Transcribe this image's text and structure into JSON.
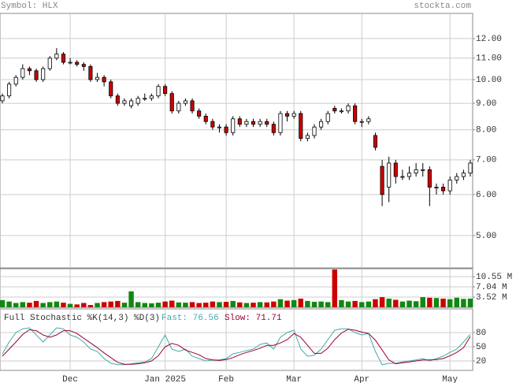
{
  "header": {
    "symbol": "Symbol: HLX",
    "site": "stockta.com"
  },
  "chart_data": [
    {
      "type": "candlestick",
      "log": true,
      "grid": true,
      "up_color": "#ffffff",
      "down_color": "#cc0000",
      "open": [
        9.1,
        9.3,
        9.8,
        10.1,
        10.5,
        10.4,
        10.0,
        10.5,
        11.0,
        11.2,
        10.8,
        10.8,
        10.7,
        10.6,
        10.0,
        10.1,
        9.9,
        9.3,
        9.0,
        8.9,
        9.0,
        9.2,
        9.2,
        9.3,
        9.7,
        9.4,
        8.7,
        9.0,
        9.1,
        8.7,
        8.5,
        8.3,
        8.1,
        8.1,
        7.9,
        8.4,
        8.2,
        8.3,
        8.2,
        8.3,
        8.2,
        7.9,
        8.6,
        8.5,
        8.6,
        7.7,
        7.8,
        8.1,
        8.3,
        8.8,
        8.7,
        8.7,
        8.9,
        8.3,
        8.3,
        7.8,
        6.8,
        6.2,
        6.9,
        6.5,
        6.5,
        6.6,
        6.7,
        6.7,
        6.2,
        6.2,
        6.1,
        6.4,
        6.5,
        6.6
      ],
      "high": [
        9.4,
        9.9,
        10.2,
        10.7,
        10.6,
        10.5,
        10.6,
        11.1,
        11.5,
        11.3,
        11.0,
        10.9,
        10.8,
        10.7,
        10.3,
        10.2,
        10.0,
        9.4,
        9.2,
        9.2,
        9.3,
        9.4,
        9.4,
        9.8,
        9.8,
        9.5,
        9.1,
        9.2,
        9.2,
        8.8,
        8.6,
        8.4,
        8.2,
        8.2,
        8.5,
        8.5,
        8.4,
        8.4,
        8.4,
        8.4,
        8.3,
        8.7,
        8.7,
        8.7,
        8.7,
        7.9,
        8.2,
        8.4,
        8.7,
        8.9,
        8.8,
        9.0,
        9.0,
        8.4,
        8.5,
        7.9,
        7.0,
        7.1,
        7.0,
        6.7,
        6.8,
        6.9,
        6.9,
        6.8,
        6.3,
        6.3,
        6.5,
        6.6,
        6.7,
        7.0
      ],
      "low": [
        9.0,
        9.2,
        9.7,
        10.0,
        10.2,
        9.9,
        9.9,
        10.4,
        10.9,
        10.7,
        10.7,
        10.6,
        10.4,
        9.9,
        9.9,
        9.7,
        9.2,
        8.9,
        8.9,
        8.8,
        8.9,
        9.1,
        9.1,
        9.2,
        9.3,
        8.6,
        8.6,
        8.9,
        8.6,
        8.4,
        8.2,
        8.0,
        7.9,
        7.8,
        7.8,
        8.1,
        8.1,
        8.1,
        8.1,
        8.1,
        7.8,
        7.8,
        8.3,
        8.4,
        7.6,
        7.6,
        7.7,
        8.0,
        8.2,
        8.6,
        8.6,
        8.6,
        8.2,
        8.1,
        8.2,
        7.3,
        5.7,
        5.8,
        6.3,
        6.4,
        6.4,
        6.5,
        6.5,
        5.7,
        6.0,
        6.0,
        6.0,
        6.3,
        6.4,
        6.5
      ],
      "close": [
        9.3,
        9.8,
        10.1,
        10.5,
        10.4,
        10.0,
        10.5,
        11.0,
        11.2,
        10.8,
        10.8,
        10.7,
        10.6,
        10.0,
        10.1,
        9.9,
        9.3,
        9.0,
        9.1,
        9.1,
        9.2,
        9.2,
        9.3,
        9.7,
        9.4,
        8.7,
        9.0,
        9.1,
        8.7,
        8.5,
        8.3,
        8.1,
        8.1,
        7.9,
        8.4,
        8.2,
        8.3,
        8.2,
        8.3,
        8.2,
        7.9,
        8.6,
        8.5,
        8.6,
        7.7,
        7.8,
        8.1,
        8.3,
        8.6,
        8.7,
        8.7,
        8.9,
        8.3,
        8.3,
        8.4,
        7.4,
        6.0,
        6.9,
        6.5,
        6.5,
        6.6,
        6.7,
        6.7,
        6.2,
        6.2,
        6.1,
        6.4,
        6.5,
        6.6,
        6.9
      ],
      "ylim": [
        4.33,
        13.42
      ],
      "yticks": [
        {
          "value": 5,
          "label": "5.00"
        },
        {
          "value": 6,
          "label": "6.00"
        },
        {
          "value": 7,
          "label": "7.00"
        },
        {
          "value": 8,
          "label": "8.00"
        },
        {
          "value": 9,
          "label": "9.00"
        },
        {
          "value": 10,
          "label": "10.00"
        },
        {
          "value": 11,
          "label": "11.00"
        },
        {
          "value": 12,
          "label": "12.00"
        }
      ]
    },
    {
      "type": "bar",
      "grid": true,
      "up_color": "#118811",
      "down_color": "#cc0000",
      "values": [
        2.5,
        2.0,
        1.5,
        1.8,
        1.6,
        2.2,
        1.5,
        1.8,
        2.0,
        1.6,
        1.2,
        1.0,
        1.5,
        0.8,
        1.5,
        1.8,
        2.0,
        2.2,
        1.6,
        5.5,
        1.8,
        1.5,
        1.4,
        1.6,
        2.0,
        2.3,
        1.7,
        1.6,
        1.8,
        1.5,
        1.6,
        2.0,
        1.8,
        1.9,
        2.2,
        1.7,
        1.5,
        1.6,
        1.8,
        1.7,
        2.0,
        2.8,
        2.3,
        2.5,
        3.0,
        2.2,
        1.9,
        2.0,
        1.8,
        13.0,
        2.5,
        2.0,
        2.2,
        1.8,
        2.0,
        2.8,
        3.5,
        3.0,
        2.6,
        2.0,
        2.3,
        2.1,
        3.5,
        3.3,
        3.2,
        3.0,
        2.8,
        3.3,
        2.9,
        3.0
      ],
      "ylim": [
        0,
        13.27
      ],
      "yticks": [
        {
          "value": 3.52,
          "label": "3.52 M"
        },
        {
          "value": 7.04,
          "label": "7.04 M"
        },
        {
          "value": 10.55,
          "label": "10.55 M"
        }
      ]
    },
    {
      "type": "line",
      "title": "Full Stochastic %K(14,3) %D(3)",
      "grid": true,
      "categories": [
        null,
        null,
        null,
        null,
        null,
        null,
        null,
        null,
        null,
        null,
        "Dec",
        null,
        null,
        null,
        null,
        null,
        null,
        null,
        null,
        null,
        null,
        null,
        null,
        null,
        "Jan 2025",
        null,
        null,
        null,
        null,
        null,
        null,
        null,
        null,
        "Feb",
        null,
        null,
        null,
        null,
        null,
        null,
        null,
        null,
        null,
        "Mar",
        null,
        null,
        null,
        null,
        null,
        null,
        null,
        null,
        null,
        "Apr",
        null,
        null,
        null,
        null,
        null,
        null,
        null,
        null,
        null,
        null,
        null,
        null,
        "May",
        null,
        null,
        null
      ],
      "series": [
        {
          "name": "Fast:",
          "color": "#44aaaa",
          "values": [
            35,
            60,
            80,
            88,
            90,
            75,
            60,
            75,
            90,
            88,
            75,
            70,
            60,
            45,
            40,
            25,
            15,
            12,
            12,
            14,
            16,
            18,
            25,
            50,
            75,
            45,
            40,
            45,
            30,
            25,
            20,
            22,
            22,
            25,
            35,
            38,
            42,
            45,
            55,
            58,
            45,
            70,
            80,
            85,
            45,
            30,
            32,
            45,
            65,
            85,
            88,
            88,
            80,
            75,
            78,
            40,
            12,
            15,
            15,
            18,
            20,
            22,
            25,
            20,
            25,
            30,
            38,
            45,
            60,
            76.56
          ]
        },
        {
          "name": "Slow:",
          "color": "#990033",
          "values": [
            30,
            45,
            60,
            76,
            86,
            84,
            75,
            70,
            75,
            84,
            84,
            78,
            68,
            58,
            48,
            37,
            27,
            17,
            13,
            13,
            14,
            16,
            20,
            31,
            50,
            57,
            53,
            43,
            38,
            33,
            25,
            22,
            21,
            23,
            27,
            33,
            38,
            42,
            47,
            53,
            53,
            58,
            65,
            78,
            70,
            53,
            36,
            36,
            47,
            65,
            79,
            87,
            85,
            81,
            78,
            64,
            43,
            22,
            14,
            16,
            18,
            20,
            22,
            22,
            23,
            25,
            31,
            38,
            48,
            71.71
          ]
        }
      ],
      "ylim": [
        0,
        130
      ],
      "yticks": [
        20,
        50,
        80
      ]
    }
  ]
}
